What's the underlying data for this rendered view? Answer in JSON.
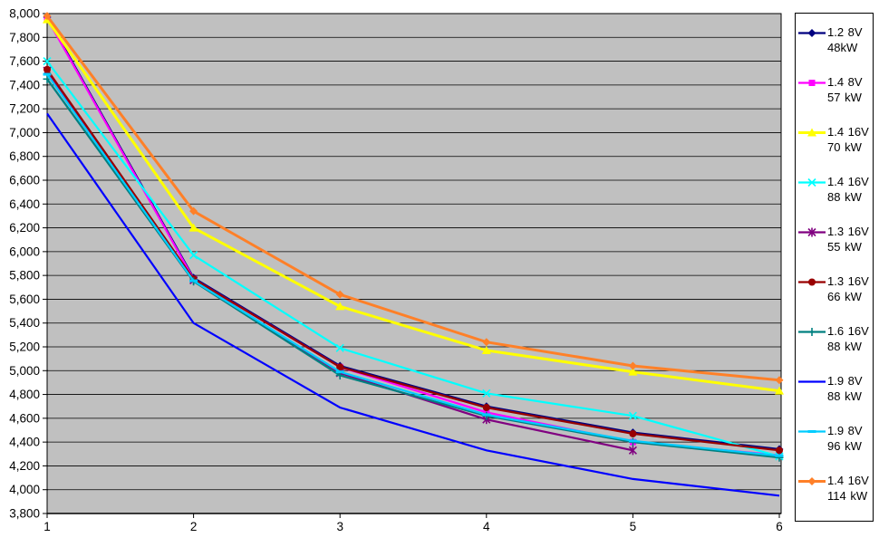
{
  "chart_data": {
    "type": "line",
    "title": "",
    "xlabel": "",
    "ylabel": "",
    "x": [
      1,
      2,
      3,
      4,
      5,
      6
    ],
    "xticks": [
      "1",
      "2",
      "3",
      "4",
      "5",
      "6"
    ],
    "yticks": [
      "8,000",
      "7,800",
      "7,600",
      "7,400",
      "7,200",
      "7,000",
      "6,800",
      "6,600",
      "6,400",
      "6,200",
      "6,000",
      "5,800",
      "5,600",
      "5,400",
      "5,200",
      "5,000",
      "4,800",
      "4,600",
      "4,400",
      "4,200",
      "4,000",
      "3,800"
    ],
    "ylim": [
      3800,
      8000
    ],
    "grid": true,
    "plot_bg": "#c0c0c0",
    "legend_position": "right",
    "series": [
      {
        "name": "1.2 8V 48kW",
        "color": "#000080",
        "marker": "diamond",
        "values": [
          7970,
          5780,
          5040,
          4700,
          4480,
          4340
        ]
      },
      {
        "name": "1.4 8V 57 kW",
        "color": "#ff00ff",
        "marker": "square",
        "values": [
          7960,
          5770,
          5030,
          4650,
          4400,
          4290
        ]
      },
      {
        "name": "1.4 16V 70 kW",
        "color": "#ffff00",
        "marker": "triangle",
        "values": [
          7950,
          6200,
          5540,
          5170,
          4990,
          4830
        ]
      },
      {
        "name": "1.4 16V 88 kW",
        "color": "#00ffff",
        "marker": "x",
        "values": [
          7600,
          5970,
          5190,
          4810,
          4620,
          4280
        ]
      },
      {
        "name": "1.3 16V 55 kW",
        "color": "#800080",
        "marker": "asterisk",
        "values": [
          7520,
          5760,
          4980,
          4590,
          4330,
          null
        ]
      },
      {
        "name": "1.3 16V 66 kW",
        "color": "#990000",
        "marker": "circle",
        "values": [
          7530,
          5770,
          5030,
          4690,
          4470,
          4330
        ]
      },
      {
        "name": "1.6 16V 88 kW",
        "color": "#008080",
        "marker": "plus",
        "values": [
          7450,
          5750,
          4960,
          4620,
          4400,
          4270
        ]
      },
      {
        "name": "1.9 8V 88 kW",
        "color": "#0000ff",
        "marker": "none",
        "values": [
          7160,
          5400,
          4690,
          4330,
          4090,
          3950
        ]
      },
      {
        "name": "1.9 8V 96 kW",
        "color": "#00ccff",
        "marker": "dash",
        "values": [
          7490,
          5755,
          4990,
          4630,
          4410,
          4285
        ]
      },
      {
        "name": "1.4 16V 114 kW",
        "color": "#ff8028",
        "marker": "diamond",
        "values": [
          7980,
          6340,
          5640,
          5240,
          5040,
          4920
        ]
      }
    ]
  }
}
